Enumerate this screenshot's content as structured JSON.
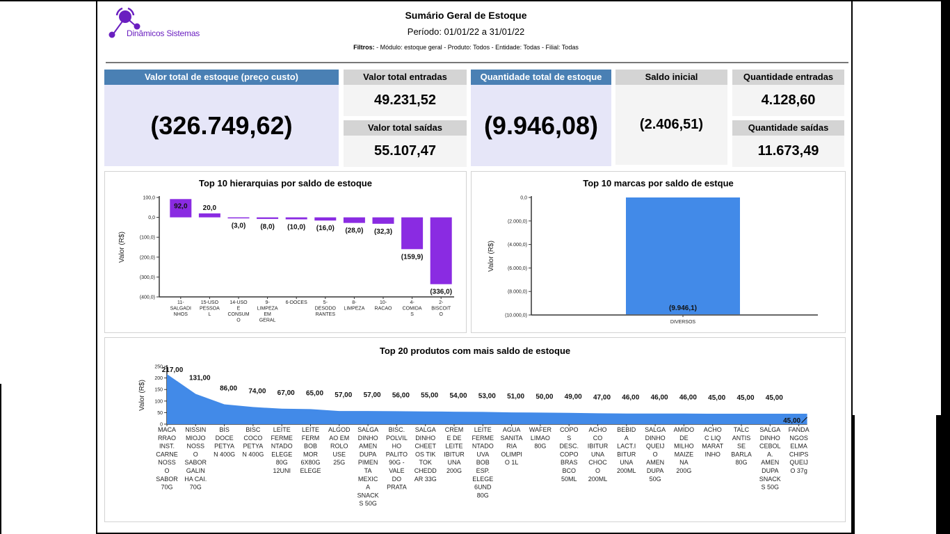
{
  "brand": {
    "name": "Dinâmicos Sistemas",
    "color": "#6a1fc0"
  },
  "header": {
    "title": "Sumário Geral de Estoque",
    "period": "Período: 01/01/22 a 31/01/22",
    "filters_label": "Filtros:",
    "filters_value": " - Módulo: estoque geral - Produto: Todos - Entidade: Todas - Filial: Todas"
  },
  "kpis": {
    "valor_total_estoque": {
      "label": "Valor total de estoque (preço custo)",
      "value": "(326.749,62)"
    },
    "valor_total_entradas": {
      "label": "Valor total entradas",
      "value": "49.231,52"
    },
    "valor_total_saidas": {
      "label": "Valor total saídas",
      "value": "55.107,47"
    },
    "quantidade_total_estoque": {
      "label": "Quantidade total de estoque",
      "value": "(9.946,08)"
    },
    "saldo_inicial": {
      "label": "Saldo inicial",
      "value": "(2.406,51)"
    },
    "quantidade_entradas": {
      "label": "Quantidade entradas",
      "value": "4.128,60"
    },
    "quantidade_saidas": {
      "label": "Quantidade saídas",
      "value": "11.673,49"
    }
  },
  "colors": {
    "kpi_blue": "#4a80b4",
    "kpi_lavender": "#e6e6f8",
    "bar_purple": "#8a2be2",
    "bar_blue": "#428ae8"
  },
  "chart_data": [
    {
      "type": "bar",
      "title": "Top 10 hierarquias por saldo de estoque",
      "ylabel": "Valor (R$)",
      "xlabel": "",
      "ylim": [
        -400,
        100
      ],
      "yticks": [
        100,
        0,
        -100,
        -200,
        -300,
        -400
      ],
      "ytick_labels": [
        "100,0",
        "0,0",
        "(100,0)",
        "(200,0)",
        "(300,0)",
        "(400,0)"
      ],
      "categories": [
        [
          "11-",
          "SALGADI",
          "NHOS"
        ],
        [
          "15-USO",
          "PESSOA",
          "L"
        ],
        [
          "14-USO",
          "E",
          "CONSUM",
          "O"
        ],
        [
          "9-",
          "LIMPEZA",
          "EM",
          "GERAL"
        ],
        [
          "6-DOCES"
        ],
        [
          "5-",
          "DESODO",
          "RANTES"
        ],
        [
          "8-",
          "LIMPEZA"
        ],
        [
          "10-",
          "RACAO"
        ],
        [
          "4-",
          "COMIDA",
          "S"
        ],
        [
          "2-",
          "BISCOIT",
          "O"
        ]
      ],
      "values": [
        92.0,
        20.0,
        -3.0,
        -8.0,
        -10.0,
        -16.0,
        -28.0,
        -32.3,
        -159.9,
        -336.0
      ],
      "data_labels": [
        "92,0",
        "20,0",
        "(3,0)",
        "(8,0)",
        "(10,0)",
        "(16,0)",
        "(28,0)",
        "(32,3)",
        "(159,9)",
        "(336,0)"
      ],
      "grid": false
    },
    {
      "type": "bar",
      "title": "Top 10 marcas por saldo de estque",
      "ylabel": "Valor (R$)",
      "xlabel": "",
      "ylim": [
        -10000,
        0
      ],
      "yticks": [
        0,
        -2000,
        -4000,
        -6000,
        -8000,
        -10000
      ],
      "ytick_labels": [
        "0,0",
        "(2.000,0)",
        "(4.000,0)",
        "(6.000,0)",
        "(8.000,0)",
        "(10.000,0)"
      ],
      "categories": [
        [
          "DIVERSOS"
        ]
      ],
      "values": [
        -9946.1
      ],
      "data_labels": [
        "(9.946,1)"
      ],
      "grid": false
    },
    {
      "type": "area",
      "title": "Top 20 produtos com mais saldo de estoque",
      "ylabel": "Valor (R$)",
      "xlabel": "",
      "ylim": [
        0,
        250
      ],
      "yticks": [
        0,
        50,
        100,
        150,
        200,
        250
      ],
      "ytick_labels": [
        "0",
        "50",
        "100",
        "150",
        "200",
        "250"
      ],
      "categories": [
        [
          "MACA",
          "RRAO",
          "INST.",
          "CARNE",
          "NOSS",
          "O",
          "SABOR",
          "70G"
        ],
        [
          "NISSIN",
          "MIOJO",
          "NOSS",
          "O",
          "SABOR",
          "GALIN",
          "HA CAI.",
          "70G"
        ],
        [
          "BIS",
          "DOCE",
          "PETYA",
          "N 400G"
        ],
        [
          "BISC",
          "COCO",
          "PETYA",
          "N 400G"
        ],
        [
          "LEITE",
          "FERME",
          "NTADO",
          "ELEGE",
          "80G",
          "12UNI"
        ],
        [
          "LEITE",
          "FERM",
          "BOB",
          "MOR",
          "6X80G",
          "ELEGE"
        ],
        [
          "ALGOD",
          "AO EM",
          "ROLO",
          "USE",
          "25G"
        ],
        [
          "SALGA",
          "DINHO",
          "AMEN",
          "DUPA",
          "PIMEN",
          "TA",
          "MEXIC",
          "A",
          "SNACK",
          "S 50G"
        ],
        [
          "BISC.",
          "POLVIL",
          "HO",
          "PALITO",
          "90G -",
          "VALE",
          "DO",
          "PRATA"
        ],
        [
          "SALGA",
          "DINHO",
          "CHEET",
          "OS TIK",
          "TOK",
          "CHEDD",
          "AR 33G"
        ],
        [
          "CREM",
          "E DE",
          "LEITE",
          "IBITUR",
          "UNA",
          "200G"
        ],
        [
          "LEITE",
          "FERME",
          "NTADO",
          "UVA",
          "BOB",
          "ESP.",
          "ELEGE",
          "6UND",
          "80G"
        ],
        [
          "AGUA",
          "SANITA",
          "RIA",
          "OLIMPI",
          "O 1L"
        ],
        [
          "WAFER",
          "LIMAO",
          "80G"
        ],
        [
          "COPO",
          "S",
          "DESC.",
          "COPO",
          "BRAS",
          "BCO",
          "50ML"
        ],
        [
          "ACHO",
          "CO",
          "IBITUR",
          "UNA",
          "CHOC",
          "O",
          "200ML"
        ],
        [
          "BEBID",
          "A",
          "LACT.I",
          "BITUR",
          "UNA",
          "200ML"
        ],
        [
          "SALGA",
          "DINHO",
          "QUEIJ",
          "O",
          "AMEN",
          "DUPA",
          "50G"
        ],
        [
          "AMIDO",
          "DE",
          "MILHO",
          "MAIZE",
          "NA",
          "200G"
        ],
        [
          "ACHO",
          "C LIQ",
          "MARAT",
          "INHO"
        ],
        [
          "TALC",
          "ANTIS",
          "SE",
          "BARLA",
          "80G"
        ],
        [
          "SALGA",
          "DINHO",
          "CEBOL",
          "A.",
          "AMEN",
          "DUPA",
          "SNACK",
          "S 50G"
        ],
        [
          "FANDA",
          "NGOS",
          "ELMA",
          "CHIPS",
          "QUEIJ",
          "O 37g"
        ]
      ],
      "values": [
        217,
        131,
        86,
        74,
        67,
        65,
        57,
        57,
        56,
        55,
        54,
        53,
        51,
        50,
        49,
        47,
        46,
        46,
        46,
        45,
        45,
        45,
        45
      ],
      "data_labels": [
        "217,00",
        "131,00",
        "86,00",
        "74,00",
        "67,00",
        "65,00",
        "57,00",
        "57,00",
        "56,00",
        "55,00",
        "54,00",
        "53,00",
        "51,00",
        "50,00",
        "49,00",
        "47,00",
        "46,00",
        "46,00",
        "46,00",
        "45,00",
        "45,00",
        "45,00",
        "45,00"
      ],
      "grid": false
    }
  ]
}
